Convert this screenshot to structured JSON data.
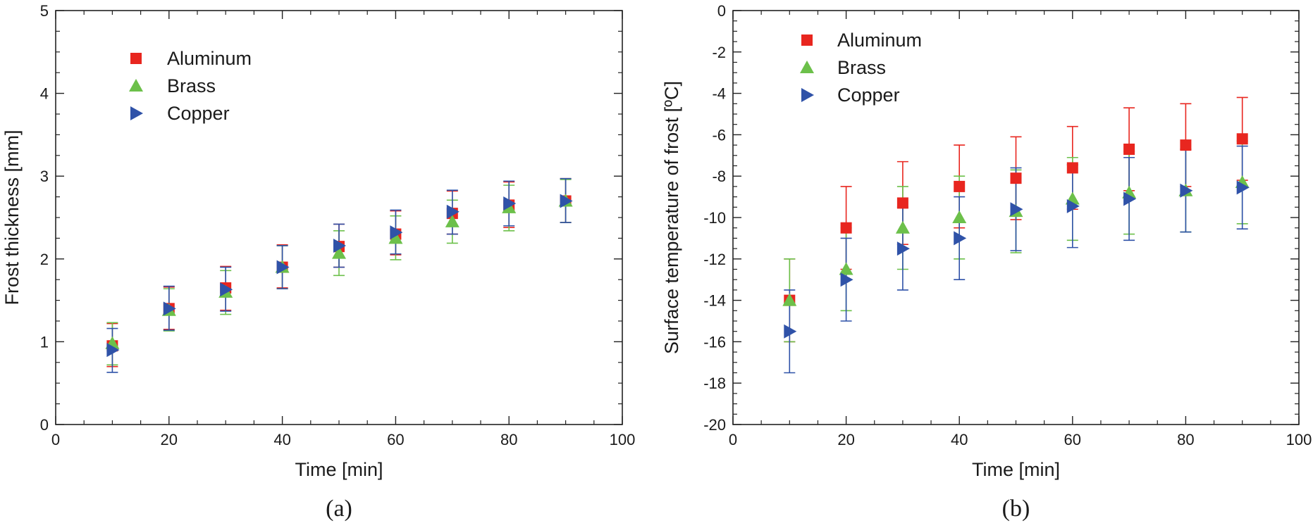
{
  "colors": {
    "Aluminum": "#e8261f",
    "Brass": "#6cc04a",
    "Copper": "#2f52a8"
  },
  "chart_data": [
    {
      "type": "scatter",
      "panel_label": "(a)",
      "title": "",
      "xlabel": "Time [min]",
      "ylabel": "Frost thickness [mm]",
      "xlim": [
        0,
        100
      ],
      "ylim": [
        0,
        5
      ],
      "xticks": [
        "0",
        "20",
        "40",
        "60",
        "80",
        "100"
      ],
      "yticks": [
        "0",
        "1",
        "2",
        "3",
        "4",
        "5"
      ],
      "legend_position": "top-left",
      "series": [
        {
          "name": "Aluminum",
          "marker": "square",
          "x": [
            10,
            20,
            30,
            40,
            50,
            60,
            70,
            80,
            90
          ],
          "y": [
            0.95,
            1.4,
            1.65,
            1.9,
            2.15,
            2.3,
            2.55,
            2.65,
            2.7
          ],
          "err_low": [
            0.7,
            1.15,
            1.38,
            1.65,
            1.9,
            2.05,
            2.3,
            2.38,
            2.44
          ],
          "err_high": [
            1.22,
            1.66,
            1.91,
            2.17,
            2.42,
            2.58,
            2.82,
            2.93,
            2.97
          ]
        },
        {
          "name": "Brass",
          "marker": "triangle-up",
          "x": [
            10,
            20,
            30,
            40,
            50,
            60,
            70,
            80,
            90
          ],
          "y": [
            0.98,
            1.38,
            1.6,
            1.9,
            2.07,
            2.25,
            2.45,
            2.62,
            2.7
          ],
          "err_low": [
            0.72,
            1.13,
            1.33,
            1.64,
            1.8,
            1.99,
            2.19,
            2.34,
            2.44
          ],
          "err_high": [
            1.23,
            1.64,
            1.86,
            2.16,
            2.34,
            2.52,
            2.71,
            2.89,
            2.96
          ]
        },
        {
          "name": "Copper",
          "marker": "triangle-right",
          "x": [
            10,
            20,
            30,
            40,
            50,
            60,
            70,
            80,
            90
          ],
          "y": [
            0.9,
            1.4,
            1.63,
            1.9,
            2.16,
            2.32,
            2.57,
            2.67,
            2.7
          ],
          "err_low": [
            0.63,
            1.14,
            1.37,
            1.64,
            1.9,
            2.06,
            2.3,
            2.4,
            2.44
          ],
          "err_high": [
            1.16,
            1.67,
            1.9,
            2.16,
            2.42,
            2.59,
            2.83,
            2.94,
            2.97
          ]
        }
      ]
    },
    {
      "type": "scatter",
      "panel_label": "(b)",
      "title": "",
      "xlabel": "Time [min]",
      "ylabel": "Surface temperature of frost [ºC]",
      "xlim": [
        0,
        100
      ],
      "ylim": [
        -20,
        0
      ],
      "xticks": [
        "0",
        "20",
        "40",
        "60",
        "80",
        "100"
      ],
      "yticks": [
        "-20",
        "-18",
        "-16",
        "-14",
        "-12",
        "-10",
        "-8",
        "-6",
        "-4",
        "-2",
        "0"
      ],
      "legend_position": "top-left",
      "series": [
        {
          "name": "Aluminum",
          "marker": "square",
          "x": [
            10,
            20,
            30,
            40,
            50,
            60,
            70,
            80,
            90
          ],
          "y": [
            -14.0,
            -10.5,
            -9.3,
            -8.5,
            -8.1,
            -7.6,
            -6.7,
            -6.5,
            -6.2
          ],
          "err_low": [
            -16.0,
            -12.5,
            -11.3,
            -10.5,
            -10.1,
            -9.6,
            -8.7,
            -8.5,
            -8.2
          ],
          "err_high": [
            -12.0,
            -8.5,
            -7.3,
            -6.5,
            -6.1,
            -5.6,
            -4.7,
            -4.5,
            -4.2
          ]
        },
        {
          "name": "Brass",
          "marker": "triangle-up",
          "x": [
            10,
            20,
            30,
            40,
            50,
            60,
            70,
            80,
            90
          ],
          "y": [
            -14.0,
            -12.5,
            -10.5,
            -10.0,
            -9.7,
            -9.1,
            -8.8,
            -8.7,
            -8.3
          ],
          "err_low": [
            -16.0,
            -14.5,
            -12.5,
            -12.0,
            -11.7,
            -11.1,
            -10.8,
            -10.7,
            -10.3
          ],
          "err_high": [
            -12.0,
            -10.5,
            -8.5,
            -8.0,
            -7.7,
            -7.1,
            -6.8,
            -6.7,
            -6.3
          ]
        },
        {
          "name": "Copper",
          "marker": "triangle-right",
          "x": [
            10,
            20,
            30,
            40,
            50,
            60,
            70,
            80,
            90
          ],
          "y": [
            -15.5,
            -13.0,
            -11.5,
            -11.0,
            -9.6,
            -9.45,
            -9.1,
            -8.7,
            -8.55
          ],
          "err_low": [
            -17.5,
            -15.0,
            -13.5,
            -13.0,
            -11.6,
            -11.45,
            -11.1,
            -10.7,
            -10.55
          ],
          "err_high": [
            -13.5,
            -11.0,
            -9.5,
            -9.0,
            -7.6,
            -7.45,
            -7.1,
            -6.7,
            -6.55
          ]
        }
      ]
    }
  ]
}
